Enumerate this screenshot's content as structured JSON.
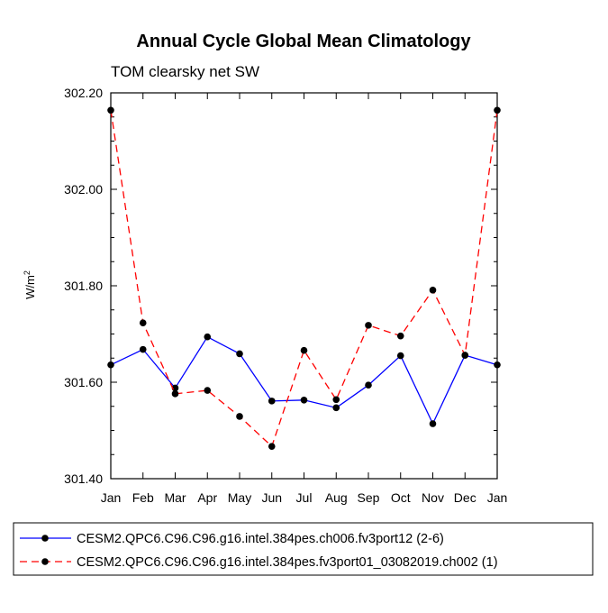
{
  "chart_data": {
    "type": "line",
    "title": "Annual Cycle Global Mean Climatology",
    "subtitle": "TOM clearsky net SW",
    "ylabel_base": "W/m",
    "ylabel_sup": "2",
    "xlabel": "",
    "categories": [
      "Jan",
      "Feb",
      "Mar",
      "Apr",
      "May",
      "Jun",
      "Jul",
      "Aug",
      "Sep",
      "Oct",
      "Nov",
      "Dec",
      "Jan"
    ],
    "ylim": [
      301.4,
      302.2
    ],
    "yticks": [
      301.4,
      301.6,
      301.8,
      302.0,
      302.2
    ],
    "ytick_labels": [
      "301.40",
      "301.60",
      "301.80",
      "302.00",
      "302.20"
    ],
    "legend_position": "bottom",
    "grid": false,
    "series": [
      {
        "name": "CESM2.QPC6.C96.C96.g16.intel.384pes.ch006.fv3port12 (2-6)",
        "color": "#0000ff",
        "dash": "solid",
        "values": [
          301.636,
          301.668,
          301.588,
          301.694,
          301.659,
          301.561,
          301.563,
          301.547,
          301.594,
          301.655,
          301.514,
          301.656,
          301.636
        ]
      },
      {
        "name": "CESM2.QPC6.C96.C96.g16.intel.384pes.fv3port01_03082019.ch002 (1)",
        "color": "#ff0000",
        "dash": "dashed",
        "values": [
          302.164,
          301.723,
          301.576,
          301.583,
          301.529,
          301.467,
          301.666,
          301.564,
          301.718,
          301.696,
          301.791,
          301.656,
          302.164
        ]
      }
    ]
  }
}
